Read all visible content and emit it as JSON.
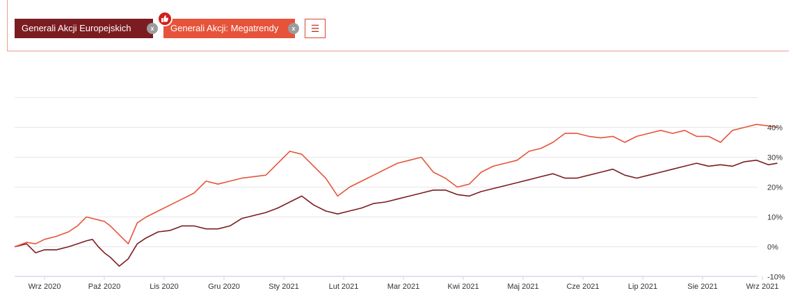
{
  "toolbar": {
    "series_chip_1": "Generali Akcji Europejskich",
    "series_chip_2": "Generali Akcji: Megatrendy",
    "remove_label": "x",
    "menu_icon": "hamburger-menu-icon",
    "favorite_icon": "thumbs-up-icon"
  },
  "colors": {
    "series_1": "#7b1c21",
    "series_2": "#e6533a",
    "grid": "#e6e6e6",
    "axis": "#ccd6eb"
  },
  "chart_data": {
    "type": "line",
    "title": "",
    "xlabel": "",
    "ylabel": "",
    "x_ticks": [
      "Wrz 2020",
      "Paź 2020",
      "Lis 2020",
      "Gru 2020",
      "Sty 2021",
      "Lut 2021",
      "Mar 2021",
      "Kwi 2021",
      "Maj 2021",
      "Cze 2021",
      "Lip 2021",
      "Sie 2021",
      "Wrz 2021"
    ],
    "y_ticks": [
      "-10%",
      "0%",
      "10%",
      "20%",
      "30%",
      "40%"
    ],
    "y_tick_values": [
      -10,
      0,
      10,
      20,
      30,
      40
    ],
    "ylim": [
      -10,
      50
    ],
    "xlim": [
      0,
      12.75
    ],
    "grid": true,
    "legend": "top-left",
    "series": [
      {
        "name": "Generali Akcji Europejskich",
        "x": [
          0,
          0.2,
          0.35,
          0.5,
          0.7,
          0.9,
          1.05,
          1.2,
          1.3,
          1.4,
          1.5,
          1.6,
          1.75,
          1.9,
          2.05,
          2.2,
          2.4,
          2.6,
          2.8,
          3.0,
          3.2,
          3.4,
          3.6,
          3.8,
          4.0,
          4.2,
          4.4,
          4.6,
          4.8,
          5.0,
          5.2,
          5.4,
          5.6,
          5.8,
          6.0,
          6.2,
          6.4,
          6.6,
          6.8,
          7.0,
          7.2,
          7.4,
          7.6,
          7.8,
          8.0,
          8.2,
          8.4,
          8.6,
          8.8,
          9.0,
          9.2,
          9.4,
          9.6,
          9.8,
          10.0,
          10.2,
          10.4,
          10.6,
          10.8,
          11.0,
          11.2,
          11.4,
          11.6,
          11.8,
          12.0,
          12.2,
          12.4,
          12.6,
          12.75
        ],
        "values": [
          0,
          1,
          -2,
          -1,
          -1,
          0,
          1,
          2,
          2.5,
          0,
          -2,
          -3.5,
          -6.5,
          -4,
          1,
          3,
          5,
          5.5,
          7,
          7,
          6,
          6,
          7,
          9.5,
          10.5,
          11.5,
          13,
          15,
          17,
          14,
          12,
          11,
          12,
          13,
          14.5,
          15,
          16,
          17,
          18,
          19,
          19,
          17.5,
          17,
          18.5,
          19.5,
          20.5,
          21.5,
          22.5,
          23.5,
          24.5,
          23,
          23,
          24,
          25,
          26,
          24,
          23,
          24,
          25,
          26,
          27,
          28,
          27,
          27.5,
          27,
          28.5,
          29,
          27.5,
          28
        ]
      },
      {
        "name": "Generali Akcji: Megatrendy",
        "x": [
          0,
          0.2,
          0.35,
          0.5,
          0.7,
          0.9,
          1.05,
          1.2,
          1.3,
          1.4,
          1.5,
          1.6,
          1.75,
          1.9,
          2.05,
          2.2,
          2.4,
          2.6,
          2.8,
          3.0,
          3.2,
          3.4,
          3.6,
          3.8,
          4.0,
          4.2,
          4.4,
          4.6,
          4.8,
          5.0,
          5.2,
          5.4,
          5.6,
          5.8,
          6.0,
          6.2,
          6.4,
          6.6,
          6.8,
          7.0,
          7.2,
          7.4,
          7.6,
          7.8,
          8.0,
          8.2,
          8.4,
          8.6,
          8.8,
          9.0,
          9.2,
          9.4,
          9.6,
          9.8,
          10.0,
          10.2,
          10.4,
          10.6,
          10.8,
          11.0,
          11.2,
          11.4,
          11.6,
          11.8,
          12.0,
          12.2,
          12.4,
          12.6,
          12.75
        ],
        "values": [
          0,
          1.5,
          1,
          2.5,
          3.5,
          5,
          7,
          10,
          9.5,
          9,
          8.5,
          7,
          4,
          1,
          8,
          10,
          12,
          14,
          16,
          18,
          22,
          21,
          22,
          23,
          23.5,
          24,
          28,
          32,
          31,
          27,
          23,
          17,
          20,
          22,
          24,
          26,
          28,
          29,
          30,
          25,
          23,
          20,
          21,
          25,
          27,
          28,
          29,
          32,
          33,
          35,
          38,
          38,
          37,
          36.5,
          37,
          35,
          37,
          38,
          39,
          38,
          39,
          37,
          37,
          35,
          39,
          40,
          41,
          40.5,
          40
        ]
      }
    ]
  }
}
